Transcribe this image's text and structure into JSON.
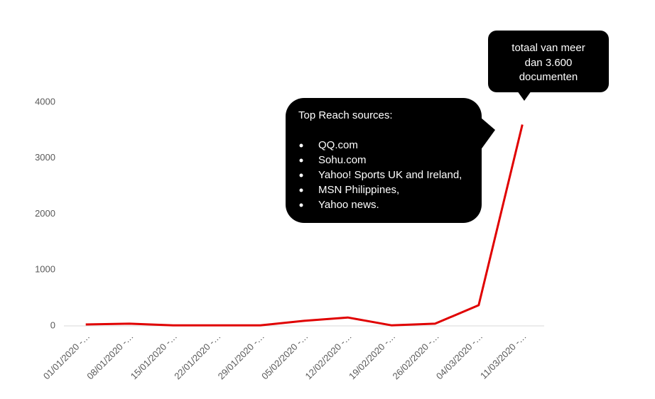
{
  "chart_data": {
    "type": "line",
    "categories": [
      "01/01/2020 -…",
      "08/01/2020 -…",
      "15/01/2020 -…",
      "22/01/2020 -…",
      "29/01/2020 -…",
      "05/02/2020 -…",
      "12/02/2020 -…",
      "19/02/2020 -…",
      "26/02/2020 -…",
      "04/03/2020 -…",
      "11/03/2020 -…"
    ],
    "values": [
      25,
      40,
      10,
      10,
      10,
      90,
      150,
      10,
      40,
      370,
      3600
    ],
    "color": "#e00000",
    "ylim": [
      0,
      4000
    ],
    "yticks": [
      0,
      1000,
      2000,
      3000,
      4000
    ],
    "grid": false,
    "annotations": [
      {
        "lines": [
          "totaal van meer",
          "dan 3.600",
          "documenten"
        ]
      },
      {
        "title": "Top Reach sources:",
        "items": [
          "QQ.com",
          "Sohu.com",
          "Yahoo! Sports UK and Ireland,",
          "MSN Philippines,",
          "Yahoo news."
        ]
      }
    ]
  }
}
